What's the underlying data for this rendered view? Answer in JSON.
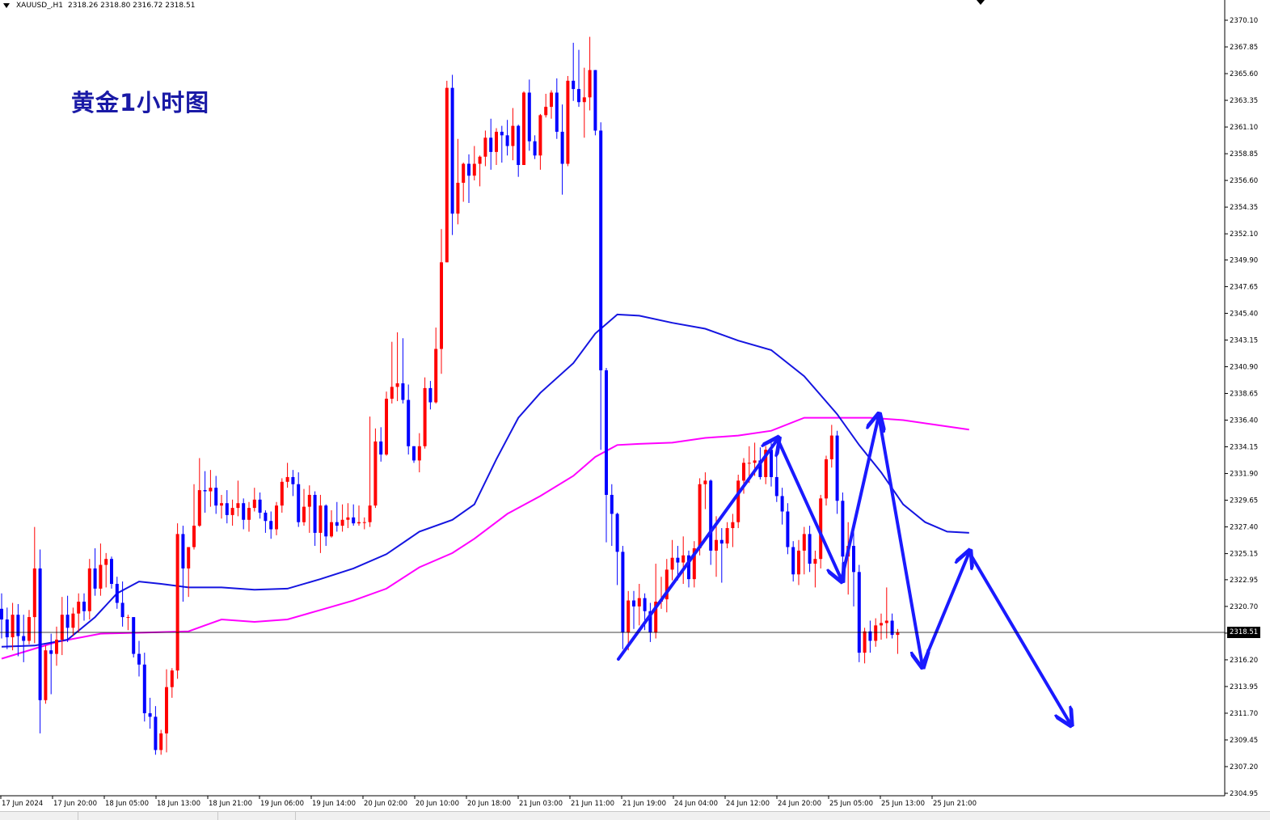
{
  "header": {
    "symbol": "XAUUSD_,H1",
    "ohlc": "2318.26 2318.80 2316.72 2318.51"
  },
  "title": "黄金1小时图",
  "current_price_label": "2318.51",
  "colors": {
    "bull": "#ff0000",
    "bear": "#0000ff",
    "ma_fast": "#1515e0",
    "ma_slow": "#ff00ff",
    "arrows": "#1a1aff",
    "title": "#1a1aa6",
    "axis": "#000000"
  },
  "chart_data": {
    "type": "candlestick",
    "timeframe": "H1",
    "y_ticks": [
      "2370.10",
      "2367.85",
      "2365.60",
      "2363.35",
      "2361.10",
      "2358.85",
      "2356.60",
      "2354.35",
      "2352.10",
      "2349.90",
      "2347.65",
      "2345.40",
      "2343.15",
      "2340.90",
      "2338.65",
      "2336.40",
      "2334.15",
      "2331.90",
      "2329.65",
      "2327.40",
      "2325.15",
      "2322.95",
      "2320.70",
      "2318.45",
      "2316.20",
      "2313.95",
      "2311.70",
      "2309.45",
      "2307.20",
      "2304.95"
    ],
    "ylim": [
      2304.95,
      2370.1
    ],
    "x_ticks": [
      "17 Jun 2024",
      "17 Jun 20:00",
      "18 Jun 05:00",
      "18 Jun 13:00",
      "18 Jun 21:00",
      "19 Jun 06:00",
      "19 Jun 14:00",
      "20 Jun 02:00",
      "20 Jun 10:00",
      "20 Jun 18:00",
      "21 Jun 03:00",
      "21 Jun 11:00",
      "21 Jun 19:00",
      "24 Jun 04:00",
      "24 Jun 12:00",
      "24 Jun 20:00",
      "25 Jun 05:00",
      "25 Jun 13:00",
      "25 Jun 21:00"
    ],
    "current_price": 2318.51,
    "ohlc": [
      [
        2320.5,
        2321.8,
        2318.0,
        2319.6
      ],
      [
        2319.6,
        2320.6,
        2317.1,
        2318.1
      ],
      [
        2318.1,
        2321.0,
        2317.0,
        2320.0
      ],
      [
        2320.0,
        2320.9,
        2316.5,
        2318.2
      ],
      [
        2318.2,
        2320.0,
        2316.0,
        2317.8
      ],
      [
        2317.8,
        2320.4,
        2317.5,
        2319.8
      ],
      [
        2319.8,
        2327.4,
        2317.6,
        2323.9
      ],
      [
        2323.9,
        2325.5,
        2310.0,
        2312.8
      ],
      [
        2312.8,
        2317.4,
        2312.5,
        2317.0
      ],
      [
        2317.0,
        2318.4,
        2313.3,
        2316.7
      ],
      [
        2316.7,
        2319.0,
        2315.7,
        2317.9
      ],
      [
        2317.9,
        2321.5,
        2316.6,
        2320.0
      ],
      [
        2320.0,
        2321.6,
        2317.7,
        2318.9
      ],
      [
        2318.9,
        2320.6,
        2318.2,
        2320.1
      ],
      [
        2320.1,
        2321.8,
        2318.5,
        2321.1
      ],
      [
        2321.1,
        2321.8,
        2319.5,
        2320.3
      ],
      [
        2320.3,
        2324.7,
        2319.6,
        2323.9
      ],
      [
        2323.9,
        2325.6,
        2321.6,
        2322.2
      ],
      [
        2322.2,
        2326.0,
        2321.6,
        2324.2
      ],
      [
        2324.2,
        2325.2,
        2322.3,
        2324.7
      ],
      [
        2324.7,
        2324.9,
        2322.2,
        2322.6
      ],
      [
        2322.6,
        2323.2,
        2320.5,
        2321.0
      ],
      [
        2321.0,
        2322.8,
        2319.0,
        2319.8
      ],
      [
        2319.8,
        2320.0,
        2318.7,
        2319.8
      ],
      [
        2319.8,
        2319.8,
        2316.4,
        2316.7
      ],
      [
        2316.7,
        2317.8,
        2314.8,
        2315.8
      ],
      [
        2315.8,
        2316.8,
        2311.0,
        2311.7
      ],
      [
        2311.7,
        2313.0,
        2310.4,
        2311.4
      ],
      [
        2311.4,
        2312.3,
        2308.2,
        2308.6
      ],
      [
        2308.6,
        2310.3,
        2308.2,
        2310.0
      ],
      [
        2310.0,
        2315.4,
        2308.4,
        2313.9
      ],
      [
        2313.9,
        2315.5,
        2313.0,
        2315.3
      ],
      [
        2315.3,
        2327.7,
        2314.6,
        2326.8
      ],
      [
        2326.8,
        2327.5,
        2321.1,
        2323.9
      ],
      [
        2323.9,
        2325.7,
        2321.5,
        2325.7
      ],
      [
        2325.7,
        2331.0,
        2325.5,
        2327.5
      ],
      [
        2327.5,
        2333.2,
        2327.4,
        2330.5
      ],
      [
        2330.5,
        2332.1,
        2328.6,
        2330.4
      ],
      [
        2330.4,
        2332.2,
        2329.1,
        2330.7
      ],
      [
        2330.7,
        2331.7,
        2328.5,
        2329.2
      ],
      [
        2329.2,
        2330.1,
        2328.1,
        2329.4
      ],
      [
        2329.4,
        2330.5,
        2327.7,
        2328.4
      ],
      [
        2328.4,
        2329.7,
        2327.5,
        2329.0
      ],
      [
        2329.0,
        2331.3,
        2328.3,
        2329.4
      ],
      [
        2329.4,
        2329.8,
        2327.2,
        2328.0
      ],
      [
        2328.0,
        2329.5,
        2327.0,
        2329.0
      ],
      [
        2329.0,
        2330.7,
        2328.7,
        2329.7
      ],
      [
        2329.7,
        2330.3,
        2328.1,
        2328.6
      ],
      [
        2328.6,
        2328.8,
        2326.9,
        2327.9
      ],
      [
        2327.9,
        2328.7,
        2326.4,
        2327.2
      ],
      [
        2327.2,
        2329.5,
        2326.7,
        2329.2
      ],
      [
        2329.2,
        2331.5,
        2328.6,
        2331.2
      ],
      [
        2331.2,
        2332.8,
        2330.7,
        2331.6
      ],
      [
        2331.6,
        2332.2,
        2330.0,
        2331.0
      ],
      [
        2331.0,
        2332.0,
        2327.4,
        2327.8
      ],
      [
        2327.8,
        2330.6,
        2327.5,
        2329.1
      ],
      [
        2329.1,
        2330.9,
        2326.9,
        2330.1
      ],
      [
        2330.1,
        2330.4,
        2325.8,
        2326.9
      ],
      [
        2326.9,
        2330.1,
        2325.2,
        2329.2
      ],
      [
        2329.2,
        2329.3,
        2325.8,
        2326.6
      ],
      [
        2326.6,
        2328.8,
        2326.5,
        2327.8
      ],
      [
        2327.8,
        2329.5,
        2327.0,
        2327.5
      ],
      [
        2327.5,
        2329.3,
        2327.0,
        2328.0
      ],
      [
        2328.0,
        2329.4,
        2327.3,
        2328.2
      ],
      [
        2328.2,
        2329.3,
        2327.5,
        2327.7
      ],
      [
        2327.7,
        2329.2,
        2327.5,
        2327.8
      ],
      [
        2327.8,
        2328.2,
        2327.2,
        2327.8
      ],
      [
        2327.8,
        2336.7,
        2327.4,
        2329.2
      ],
      [
        2329.2,
        2335.7,
        2329.0,
        2334.6
      ],
      [
        2334.6,
        2335.8,
        2332.9,
        2333.5
      ],
      [
        2333.5,
        2338.8,
        2333.4,
        2338.2
      ],
      [
        2338.2,
        2343.0,
        2337.8,
        2339.2
      ],
      [
        2339.2,
        2343.8,
        2338.0,
        2339.5
      ],
      [
        2339.5,
        2343.3,
        2337.8,
        2338.1
      ],
      [
        2338.1,
        2339.4,
        2333.5,
        2334.2
      ],
      [
        2334.2,
        2334.2,
        2332.8,
        2333.0
      ],
      [
        2333.0,
        2335.3,
        2332.0,
        2334.2
      ],
      [
        2334.2,
        2340.0,
        2334.0,
        2339.1
      ],
      [
        2339.1,
        2339.7,
        2337.3,
        2337.9
      ],
      [
        2337.9,
        2344.2,
        2337.8,
        2342.4
      ],
      [
        2342.4,
        2352.5,
        2340.3,
        2349.7
      ],
      [
        2349.7,
        2365.0,
        2349.7,
        2364.4
      ],
      [
        2364.4,
        2365.5,
        2352.0,
        2353.8
      ],
      [
        2353.8,
        2360.1,
        2352.9,
        2356.4
      ],
      [
        2356.4,
        2358.1,
        2354.8,
        2358.0
      ],
      [
        2358.0,
        2358.8,
        2354.7,
        2357.0
      ],
      [
        2357.0,
        2359.5,
        2356.6,
        2358.0
      ],
      [
        2358.0,
        2358.7,
        2356.1,
        2358.6
      ],
      [
        2358.6,
        2360.8,
        2357.8,
        2360.2
      ],
      [
        2360.2,
        2361.8,
        2357.5,
        2359.0
      ],
      [
        2359.0,
        2361.0,
        2357.9,
        2360.7
      ],
      [
        2360.7,
        2361.2,
        2358.1,
        2360.4
      ],
      [
        2360.4,
        2361.7,
        2358.7,
        2359.5
      ],
      [
        2359.5,
        2362.7,
        2358.3,
        2361.2
      ],
      [
        2361.2,
        2361.3,
        2356.9,
        2357.9
      ],
      [
        2357.9,
        2364.1,
        2358.0,
        2364.0
      ],
      [
        2364.0,
        2365.1,
        2359.1,
        2359.9
      ],
      [
        2359.9,
        2360.4,
        2358.4,
        2358.7
      ],
      [
        2358.7,
        2362.2,
        2357.5,
        2362.1
      ],
      [
        2362.1,
        2363.9,
        2361.9,
        2362.8
      ],
      [
        2362.8,
        2364.2,
        2361.8,
        2364.0
      ],
      [
        2364.0,
        2365.2,
        2360.1,
        2360.7
      ],
      [
        2360.7,
        2363.0,
        2355.4,
        2358.0
      ],
      [
        2358.0,
        2365.4,
        2357.8,
        2365.0
      ],
      [
        2365.0,
        2368.2,
        2363.3,
        2364.3
      ],
      [
        2364.3,
        2367.6,
        2362.8,
        2363.2
      ],
      [
        2363.2,
        2366.1,
        2360.2,
        2363.6
      ],
      [
        2363.6,
        2368.7,
        2362.5,
        2365.9
      ],
      [
        2365.9,
        2365.9,
        2360.4,
        2360.8
      ],
      [
        2360.8,
        2361.5,
        2333.9,
        2340.6
      ],
      [
        2340.6,
        2340.8,
        2326.1,
        2330.1
      ],
      [
        2330.1,
        2331.0,
        2325.8,
        2328.5
      ],
      [
        2328.5,
        2328.6,
        2322.5,
        2325.3
      ],
      [
        2325.3,
        2325.8,
        2317.1,
        2318.5
      ],
      [
        2318.5,
        2322.0,
        2317.0,
        2321.2
      ],
      [
        2321.2,
        2322.0,
        2318.8,
        2320.7
      ],
      [
        2320.7,
        2322.6,
        2319.1,
        2321.4
      ],
      [
        2321.4,
        2321.8,
        2318.7,
        2320.3
      ],
      [
        2320.3,
        2321.0,
        2317.7,
        2318.5
      ],
      [
        2318.5,
        2324.3,
        2318.0,
        2321.1
      ],
      [
        2321.1,
        2323.2,
        2320.5,
        2321.3
      ],
      [
        2321.3,
        2324.7,
        2320.2,
        2323.8
      ],
      [
        2323.8,
        2326.3,
        2322.9,
        2324.8
      ],
      [
        2324.8,
        2325.8,
        2322.9,
        2324.4
      ],
      [
        2324.4,
        2326.6,
        2322.6,
        2325.0
      ],
      [
        2325.0,
        2325.4,
        2322.3,
        2323.0
      ],
      [
        2323.0,
        2326.2,
        2322.3,
        2325.6
      ],
      [
        2325.6,
        2331.5,
        2325.0,
        2331.0
      ],
      [
        2331.0,
        2332.0,
        2328.9,
        2331.3
      ],
      [
        2331.3,
        2331.4,
        2324.2,
        2325.4
      ],
      [
        2325.4,
        2328.3,
        2323.2,
        2326.3
      ],
      [
        2326.3,
        2327.3,
        2322.7,
        2326.0
      ],
      [
        2326.0,
        2327.8,
        2325.6,
        2327.3
      ],
      [
        2327.3,
        2328.5,
        2325.7,
        2327.8
      ],
      [
        2327.8,
        2331.8,
        2327.3,
        2331.3
      ],
      [
        2331.3,
        2333.2,
        2330.2,
        2332.8
      ],
      [
        2332.8,
        2334.2,
        2331.1,
        2332.8
      ],
      [
        2332.8,
        2334.5,
        2331.7,
        2333.0
      ],
      [
        2333.0,
        2334.1,
        2331.4,
        2331.6
      ],
      [
        2331.6,
        2334.2,
        2331.0,
        2333.9
      ],
      [
        2333.9,
        2334.5,
        2330.8,
        2331.6
      ],
      [
        2331.6,
        2334.2,
        2329.5,
        2330.0
      ],
      [
        2330.0,
        2330.7,
        2327.6,
        2328.7
      ],
      [
        2328.7,
        2329.4,
        2325.1,
        2325.7
      ],
      [
        2325.7,
        2326.2,
        2322.8,
        2323.4
      ],
      [
        2323.4,
        2326.3,
        2322.5,
        2325.4
      ],
      [
        2325.4,
        2327.4,
        2323.4,
        2326.8
      ],
      [
        2326.8,
        2327.5,
        2323.6,
        2324.3
      ],
      [
        2324.3,
        2325.4,
        2322.3,
        2324.7
      ],
      [
        2324.7,
        2330.1,
        2323.9,
        2329.8
      ],
      [
        2329.8,
        2333.4,
        2329.2,
        2333.1
      ],
      [
        2333.1,
        2336.0,
        2332.4,
        2335.1
      ],
      [
        2335.1,
        2335.5,
        2328.5,
        2329.6
      ],
      [
        2329.6,
        2330.3,
        2324.3,
        2324.9
      ],
      [
        2324.9,
        2327.8,
        2321.7,
        2325.8
      ],
      [
        2325.8,
        2327.6,
        2320.7,
        2323.6
      ],
      [
        2323.6,
        2324.2,
        2316.0,
        2316.8
      ],
      [
        2316.8,
        2318.9,
        2315.9,
        2318.6
      ],
      [
        2318.6,
        2319.5,
        2316.8,
        2317.8
      ],
      [
        2317.8,
        2319.7,
        2317.3,
        2319.1
      ],
      [
        2319.1,
        2320.1,
        2317.9,
        2319.3
      ],
      [
        2319.3,
        2322.3,
        2318.0,
        2319.5
      ],
      [
        2319.5,
        2320.1,
        2318.0,
        2318.3
      ],
      [
        2318.3,
        2318.8,
        2316.7,
        2318.51
      ]
    ],
    "ma_fast": [
      [
        0,
        2317.3
      ],
      [
        6,
        2317.4
      ],
      [
        12,
        2317.9
      ],
      [
        17,
        2319.8
      ],
      [
        21,
        2321.8
      ],
      [
        25,
        2322.8
      ],
      [
        29,
        2322.6
      ],
      [
        34,
        2322.3
      ],
      [
        40,
        2322.3
      ],
      [
        46,
        2322.1
      ],
      [
        52,
        2322.2
      ],
      [
        58,
        2323.0
      ],
      [
        64,
        2323.9
      ],
      [
        70,
        2325.1
      ],
      [
        76,
        2327.0
      ],
      [
        82,
        2328.0
      ],
      [
        86,
        2329.3
      ],
      [
        90,
        2333.1
      ],
      [
        94,
        2336.6
      ],
      [
        98,
        2338.7
      ],
      [
        104,
        2341.2
      ],
      [
        108,
        2343.7
      ],
      [
        112,
        2345.3
      ],
      [
        116,
        2345.2
      ],
      [
        122,
        2344.6
      ],
      [
        128,
        2344.1
      ],
      [
        134,
        2343.1
      ],
      [
        140,
        2342.3
      ],
      [
        146,
        2340.1
      ],
      [
        152,
        2336.9
      ],
      [
        156,
        2334.3
      ],
      [
        160,
        2332.0
      ],
      [
        164,
        2329.3
      ],
      [
        168,
        2327.8
      ],
      [
        172,
        2327.0
      ],
      [
        176,
        2326.9
      ]
    ],
    "ma_slow": [
      [
        0,
        2316.3
      ],
      [
        10,
        2317.7
      ],
      [
        18,
        2318.4
      ],
      [
        26,
        2318.5
      ],
      [
        34,
        2318.6
      ],
      [
        40,
        2319.6
      ],
      [
        46,
        2319.4
      ],
      [
        52,
        2319.6
      ],
      [
        58,
        2320.4
      ],
      [
        64,
        2321.2
      ],
      [
        70,
        2322.2
      ],
      [
        76,
        2324.0
      ],
      [
        82,
        2325.2
      ],
      [
        86,
        2326.4
      ],
      [
        92,
        2328.5
      ],
      [
        98,
        2330.0
      ],
      [
        104,
        2331.7
      ],
      [
        108,
        2333.3
      ],
      [
        112,
        2334.3
      ],
      [
        116,
        2334.4
      ],
      [
        122,
        2334.5
      ],
      [
        128,
        2334.9
      ],
      [
        134,
        2335.1
      ],
      [
        140,
        2335.5
      ],
      [
        146,
        2336.6
      ],
      [
        152,
        2336.6
      ],
      [
        158,
        2336.6
      ],
      [
        164,
        2336.4
      ],
      [
        170,
        2336.0
      ],
      [
        176,
        2335.6
      ]
    ]
  }
}
